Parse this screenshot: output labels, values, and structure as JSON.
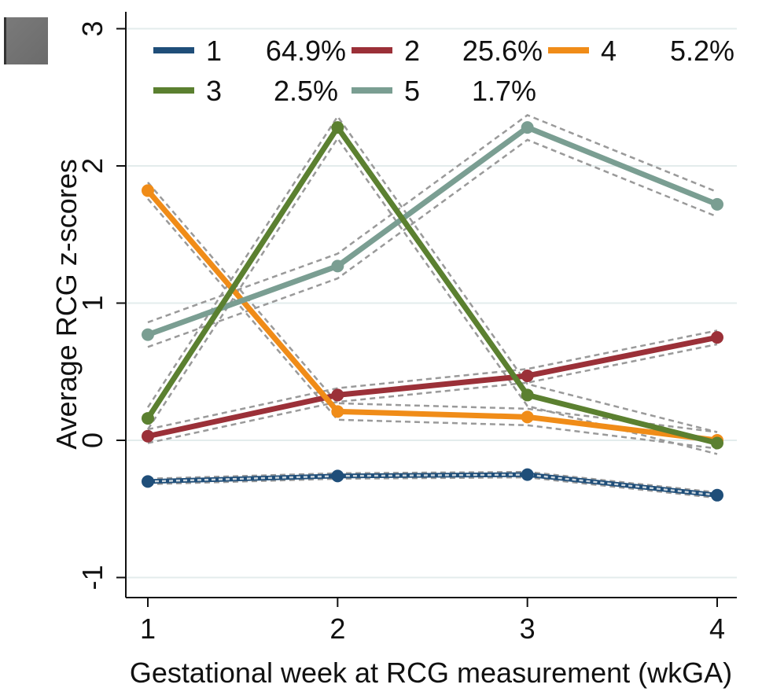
{
  "chart_data": {
    "type": "line",
    "title": "",
    "xlabel": "Gestational week at RCG measurement (wkGA)",
    "ylabel": "Average RCG z-scores",
    "x": [
      1,
      2,
      3,
      4
    ],
    "xlim": [
      0.9,
      4.1
    ],
    "ylim": [
      -1.15,
      3.15
    ],
    "xticks": [
      "1",
      "2",
      "3",
      "4"
    ],
    "yticks": [
      {
        "value": -1,
        "label": "-1"
      },
      {
        "value": 0,
        "label": "0"
      },
      {
        "value": 1,
        "label": "1"
      },
      {
        "value": 2,
        "label": "2"
      },
      {
        "value": 3,
        "label": "3"
      }
    ],
    "grid": true,
    "legend_position": "top",
    "series": [
      {
        "name": "1",
        "percent": "64.9%",
        "color": "#1f4e79",
        "values": [
          -0.3,
          -0.26,
          -0.25,
          -0.4
        ],
        "ci_width": 0.02
      },
      {
        "name": "2",
        "percent": "25.6%",
        "color": "#9b3038",
        "values": [
          0.03,
          0.33,
          0.47,
          0.75
        ],
        "ci_width": 0.05
      },
      {
        "name": "3",
        "percent": "2.5%",
        "color": "#5b8030",
        "values": [
          0.16,
          2.28,
          0.33,
          -0.02
        ],
        "ci_width": 0.08
      },
      {
        "name": "4",
        "percent": "5.2%",
        "color": "#f08c18",
        "values": [
          1.82,
          0.21,
          0.17,
          0.0
        ],
        "ci_width": 0.06
      },
      {
        "name": "5",
        "percent": "1.7%",
        "color": "#7a9e92",
        "values": [
          0.77,
          1.27,
          2.28,
          1.72
        ],
        "ci_width": 0.09
      }
    ],
    "legend_order": [
      "1",
      "2",
      "4",
      "3",
      "5"
    ]
  }
}
